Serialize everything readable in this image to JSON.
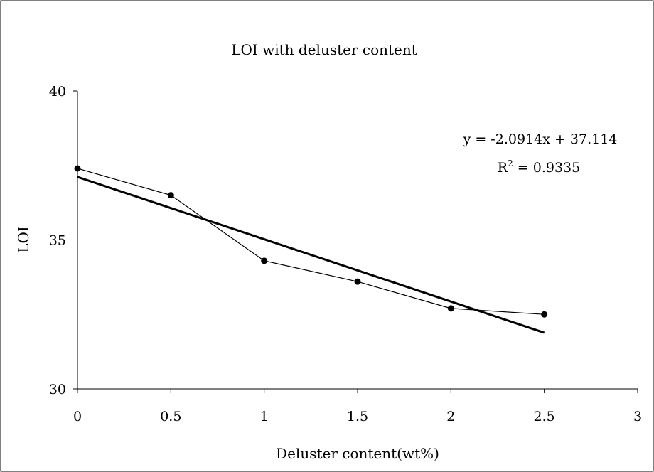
{
  "chart_data": {
    "type": "scatter",
    "title": "LOI with deluster content",
    "xlabel": "Deluster content(wt%)",
    "ylabel": "LOI",
    "xlim": [
      0,
      3
    ],
    "ylim": [
      30,
      40
    ],
    "x_ticks": [
      "0",
      "0.5",
      "1",
      "1.5",
      "2",
      "2.5",
      "3"
    ],
    "y_ticks": [
      "30",
      "35",
      "40"
    ],
    "x_tick_values": [
      0,
      0.5,
      1,
      1.5,
      2,
      2.5,
      3
    ],
    "y_tick_values": [
      30,
      35,
      40
    ],
    "grid": {
      "horizontal_at": [
        35
      ]
    },
    "series": [
      {
        "points": [
          {
            "x": 0,
            "y": 37.4
          },
          {
            "x": 0.5,
            "y": 36.5
          },
          {
            "x": 1,
            "y": 34.3
          },
          {
            "x": 1.5,
            "y": 33.6
          },
          {
            "x": 2,
            "y": 32.7
          },
          {
            "x": 2.5,
            "y": 32.5
          }
        ],
        "marker": "circle",
        "line": "thin",
        "color": "#000000"
      }
    ],
    "trendline": {
      "type": "linear",
      "slope": -2.0914,
      "intercept": 37.114,
      "x_range": [
        0,
        2.5
      ],
      "equation_text": "y = -2.0914x + 37.114",
      "r2_prefix": "R",
      "r2_sup": "2",
      "r2_suffix": " = 0.9335",
      "color": "#000000"
    }
  }
}
